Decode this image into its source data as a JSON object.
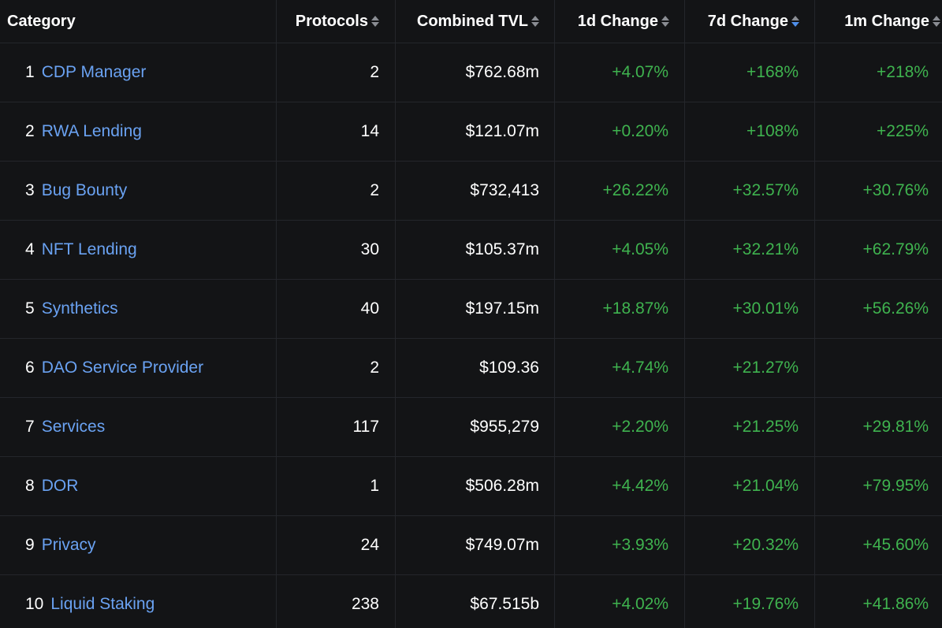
{
  "header": {
    "category": "Category",
    "protocols": "Protocols",
    "tvl": "Combined TVL",
    "change_1d": "1d Change",
    "change_7d": "7d Change",
    "change_1m": "1m Change"
  },
  "sort": {
    "active_column": "7d Change",
    "direction": "descending"
  },
  "colors": {
    "link": "#6aa2f2",
    "positive": "#3fb34f",
    "background": "#131416",
    "sort_active": "#4f8fea"
  },
  "rows": [
    {
      "rank": "1",
      "name": "CDP Manager",
      "protocols": "2",
      "tvl": "$762.68m",
      "d1": "+4.07%",
      "d7": "+168%",
      "m1": "+218%"
    },
    {
      "rank": "2",
      "name": "RWA Lending",
      "protocols": "14",
      "tvl": "$121.07m",
      "d1": "+0.20%",
      "d7": "+108%",
      "m1": "+225%"
    },
    {
      "rank": "3",
      "name": "Bug Bounty",
      "protocols": "2",
      "tvl": "$732,413",
      "d1": "+26.22%",
      "d7": "+32.57%",
      "m1": "+30.76%"
    },
    {
      "rank": "4",
      "name": "NFT Lending",
      "protocols": "30",
      "tvl": "$105.37m",
      "d1": "+4.05%",
      "d7": "+32.21%",
      "m1": "+62.79%"
    },
    {
      "rank": "5",
      "name": "Synthetics",
      "protocols": "40",
      "tvl": "$197.15m",
      "d1": "+18.87%",
      "d7": "+30.01%",
      "m1": "+56.26%"
    },
    {
      "rank": "6",
      "name": "DAO Service Provider",
      "protocols": "2",
      "tvl": "$109.36",
      "d1": "+4.74%",
      "d7": "+21.27%",
      "m1": ""
    },
    {
      "rank": "7",
      "name": "Services",
      "protocols": "117",
      "tvl": "$955,279",
      "d1": "+2.20%",
      "d7": "+21.25%",
      "m1": "+29.81%"
    },
    {
      "rank": "8",
      "name": "DOR",
      "protocols": "1",
      "tvl": "$506.28m",
      "d1": "+4.42%",
      "d7": "+21.04%",
      "m1": "+79.95%"
    },
    {
      "rank": "9",
      "name": "Privacy",
      "protocols": "24",
      "tvl": "$749.07m",
      "d1": "+3.93%",
      "d7": "+20.32%",
      "m1": "+45.60%"
    },
    {
      "rank": "10",
      "name": "Liquid Staking",
      "protocols": "238",
      "tvl": "$67.515b",
      "d1": "+4.02%",
      "d7": "+19.76%",
      "m1": "+41.86%"
    }
  ]
}
